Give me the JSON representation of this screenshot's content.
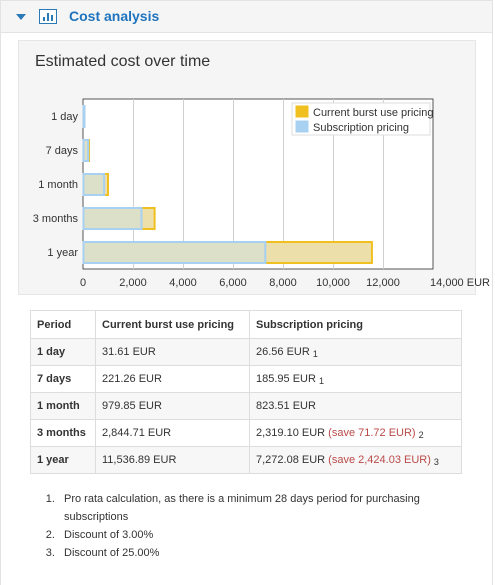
{
  "header": {
    "title": "Cost analysis"
  },
  "chart_data": {
    "type": "bar",
    "orientation": "horizontal",
    "stacked": false,
    "title": "Estimated cost over time",
    "categories": [
      "1 day",
      "7 days",
      "1 month",
      "3 months",
      "1 year"
    ],
    "series": [
      {
        "name": "Current burst use pricing",
        "values": [
          31.61,
          221.26,
          979.85,
          2844.71,
          11536.89
        ],
        "color": "#f0c020",
        "fill": "#ecdfaa"
      },
      {
        "name": "Subscription pricing",
        "values": [
          26.56,
          185.95,
          823.51,
          2319.1,
          7272.08
        ],
        "color": "#a8d0f0",
        "fill": "#dce0c8"
      }
    ],
    "xticks": [
      "0",
      "2,000",
      "4,000",
      "6,000",
      "8,000",
      "10,000",
      "12,000",
      "14,000 EUR"
    ],
    "xlim": [
      0,
      14000
    ],
    "grid": true,
    "legend": "top-right"
  },
  "table": {
    "headers": [
      "Period",
      "Current burst use pricing",
      "Subscription pricing"
    ],
    "rows": [
      {
        "period": "1 day",
        "burst": "31.61 EUR",
        "sub": "26.56 EUR",
        "save": "",
        "note": "1"
      },
      {
        "period": "7 days",
        "burst": "221.26 EUR",
        "sub": "185.95 EUR",
        "save": "",
        "note": "1"
      },
      {
        "period": "1 month",
        "burst": "979.85 EUR",
        "sub": "823.51 EUR",
        "save": "",
        "note": ""
      },
      {
        "period": "3 months",
        "burst": "2,844.71 EUR",
        "sub": "2,319.10 EUR",
        "save": "(save 71.72 EUR)",
        "note": "2"
      },
      {
        "period": "1 year",
        "burst": "11,536.89 EUR",
        "sub": "7,272.08 EUR",
        "save": "(save 2,424.03 EUR)",
        "note": "3"
      }
    ]
  },
  "notes": [
    "Pro rata calculation, as there is a minimum 28 days period for purchasing subscriptions",
    "Discount of 3.00%",
    "Discount of 25.00%"
  ]
}
